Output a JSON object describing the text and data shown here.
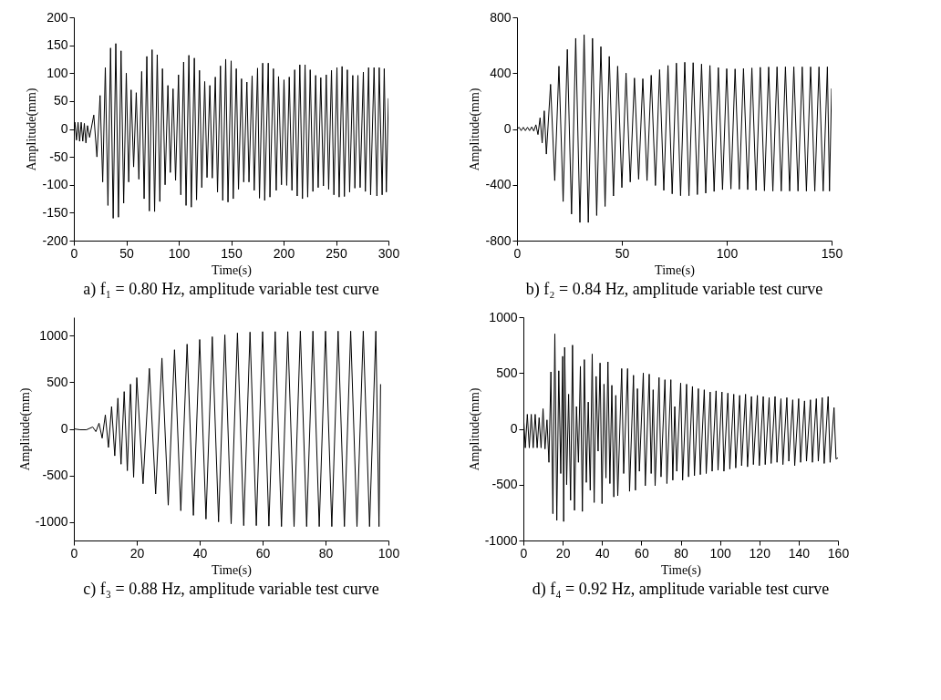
{
  "chart_data": [
    {
      "type": "line",
      "title": "a) f₁ = 0.80 Hz, amplitude variable test curve",
      "xlabel": "Time(s)",
      "ylabel": "Amplitude(mm)",
      "xlim": [
        0,
        300
      ],
      "xticks": [
        0,
        50,
        100,
        150,
        200,
        250,
        300
      ],
      "ylim": [
        -200,
        200
      ],
      "yticks": [
        -200,
        -150,
        -100,
        -50,
        0,
        50,
        100,
        150,
        200
      ],
      "series": [
        {
          "color": "#000000",
          "x": [
            0,
            1,
            2.5,
            4,
            5.5,
            7,
            8.5,
            10,
            11.5,
            13,
            15,
            19,
            22,
            25,
            27.5,
            30,
            32.5,
            35,
            37.5,
            40,
            42.5,
            45,
            47.5,
            50,
            52.3,
            54.6,
            57,
            59.5,
            62,
            64.7,
            67,
            69.6,
            72,
            74.6,
            77,
            79.5,
            82,
            84.5,
            87,
            89.7,
            92,
            94.6,
            97,
            99.8,
            102,
            104.7,
            107,
            109.7,
            112,
            114.9,
            117,
            119.8,
            122,
            124.8,
            127,
            129.7,
            132,
            134.9,
            137,
            139.8,
            142,
            144.8,
            147,
            150,
            152,
            154.9,
            157,
            159.9,
            162,
            165,
            167,
            170,
            172,
            175.2,
            177,
            180.1,
            182,
            185.4,
            187,
            190.3,
            193,
            195.2,
            198,
            200.4,
            203,
            205.4,
            208,
            210.6,
            213,
            215.5,
            218,
            220.5,
            223,
            225.4,
            228,
            230.6,
            233,
            235.5,
            238,
            240.7,
            243,
            245.7,
            248,
            250.9,
            253,
            255.8,
            258,
            260.8,
            263,
            266,
            268,
            270.9,
            273,
            276.1,
            278,
            281.1,
            283,
            286.3,
            289,
            291.2,
            294,
            296,
            298,
            300
          ],
          "values": [
            0,
            12,
            -20,
            12,
            -22,
            12,
            -22,
            10,
            -25,
            6,
            -15,
            25,
            -50,
            60,
            -95,
            110,
            -137,
            145,
            -160,
            153,
            -158,
            140,
            -133,
            100,
            -95,
            70,
            -68,
            65,
            -90,
            103,
            -125,
            130,
            -147,
            142,
            -148,
            133,
            -130,
            108,
            -100,
            78,
            -78,
            72,
            -92,
            97,
            -118,
            120,
            -137,
            132,
            -140,
            127,
            -127,
            105,
            -105,
            85,
            -87,
            78,
            -88,
            93,
            -113,
            113,
            -128,
            125,
            -131,
            122,
            -125,
            108,
            -108,
            90,
            -95,
            84,
            -95,
            95,
            -110,
            109,
            -124,
            118,
            -128,
            118,
            -122,
            108,
            -110,
            94,
            -100,
            88,
            -101,
            93,
            -110,
            106,
            -120,
            115,
            -125,
            115,
            -122,
            106,
            -112,
            96,
            -105,
            92,
            -102,
            97,
            -108,
            105,
            -118,
            110,
            -122,
            112,
            -121,
            106,
            -113,
            96,
            -106,
            96,
            -105,
            102,
            -112,
            110,
            -118,
            110,
            -120,
            110,
            -118,
            108,
            -113,
            55
          ]
        }
      ]
    },
    {
      "type": "line",
      "title": "b) f₂ = 0.84 Hz, amplitude variable test curve",
      "xlabel": "Time(s)",
      "ylabel": "Amplitude(mm)",
      "xlim": [
        0,
        150
      ],
      "xticks": [
        0,
        50,
        100,
        150
      ],
      "ylim": [
        -800,
        800
      ],
      "yticks": [
        -800,
        -400,
        0,
        400,
        800
      ],
      "series": [
        {
          "color": "#000000",
          "x": [
            0,
            1,
            2,
            3,
            4,
            5,
            6,
            7,
            8,
            9,
            10,
            11,
            12,
            13,
            14,
            16,
            18,
            20,
            22,
            24,
            26,
            28,
            30,
            32,
            34,
            36,
            38,
            40,
            42,
            44,
            46,
            48,
            50,
            52,
            54,
            56,
            58,
            60,
            62,
            64,
            66,
            68,
            70,
            72,
            74,
            76,
            78,
            80,
            82,
            84,
            86,
            88,
            90,
            92,
            94,
            96,
            98,
            100,
            102,
            104,
            106,
            108,
            110,
            112,
            114,
            116,
            118,
            120,
            122,
            124,
            126,
            128,
            130,
            132,
            134,
            136,
            138,
            140,
            142,
            144,
            146,
            148,
            149,
            150
          ],
          "values": [
            0,
            12,
            -12,
            12,
            -12,
            12,
            -12,
            15,
            -15,
            30,
            -40,
            80,
            -100,
            130,
            -180,
            320,
            -370,
            450,
            -520,
            570,
            -610,
            650,
            -670,
            675,
            -670,
            650,
            -620,
            590,
            -555,
            520,
            -480,
            450,
            -420,
            400,
            -380,
            365,
            -360,
            360,
            -370,
            385,
            -405,
            425,
            -440,
            455,
            -465,
            472,
            -478,
            478,
            -478,
            475,
            -470,
            465,
            -460,
            455,
            -448,
            440,
            -435,
            432,
            -430,
            430,
            -432,
            433,
            -435,
            437,
            -440,
            442,
            -443,
            444,
            -445,
            445,
            -445,
            445,
            -445,
            445,
            -445,
            445,
            -445,
            445,
            -445,
            445,
            -445,
            445,
            -445,
            290
          ]
        }
      ]
    },
    {
      "type": "line",
      "title": "c) f₃ = 0.88 Hz, amplitude variable test curve",
      "xlabel": "Time(s)",
      "ylabel": "Amplitude(mm)",
      "xlim": [
        0,
        100
      ],
      "xticks": [
        0,
        20,
        40,
        60,
        80,
        100
      ],
      "ylim": [
        -1200,
        1200
      ],
      "yticks": [
        -1000,
        -500,
        0,
        500,
        1000
      ],
      "series": [
        {
          "color": "#000000",
          "x": [
            0,
            2,
            4,
            6,
            7,
            8,
            9,
            10,
            11,
            12,
            13,
            14,
            15,
            16,
            17,
            18,
            19,
            20,
            22,
            24,
            26,
            28,
            30,
            32,
            34,
            36,
            38,
            40,
            42,
            44,
            46,
            48,
            50,
            52,
            54,
            56,
            58,
            60,
            62,
            64,
            66,
            68,
            70,
            72,
            74,
            76,
            78,
            80,
            82,
            84,
            86,
            88,
            90,
            92,
            94,
            96,
            97,
            97.5
          ],
          "values": [
            0,
            -10,
            -10,
            20,
            -30,
            60,
            -100,
            150,
            -200,
            240,
            -290,
            330,
            -380,
            400,
            -450,
            480,
            -520,
            550,
            -590,
            650,
            -700,
            760,
            -820,
            850,
            -880,
            910,
            -930,
            960,
            -970,
            990,
            -1000,
            1010,
            -1020,
            1030,
            -1040,
            1040,
            -1040,
            1045,
            -1045,
            1045,
            -1050,
            1045,
            -1050,
            1050,
            -1050,
            1050,
            -1050,
            1050,
            -1050,
            1050,
            -1050,
            1050,
            -1050,
            1050,
            -1050,
            1050,
            -1050,
            480
          ]
        }
      ]
    },
    {
      "type": "line",
      "title": "d) f₄ = 0.92 Hz, amplitude variable test curve",
      "xlabel": "Time(s)",
      "ylabel": "Amplitude(mm)",
      "xlim": [
        0,
        160
      ],
      "xticks": [
        0,
        20,
        40,
        60,
        80,
        100,
        120,
        140,
        160
      ],
      "ylim": [
        -1000,
        1000
      ],
      "yticks": [
        -1000,
        -500,
        0,
        500,
        1000
      ],
      "series": [
        {
          "color": "#000000",
          "x": [
            0,
            1,
            2,
            3,
            4,
            5,
            6,
            7,
            8,
            9,
            10,
            11,
            12,
            13,
            14,
            15,
            16,
            17,
            18,
            19,
            20,
            20.5,
            21,
            22,
            23,
            24,
            25,
            26,
            27,
            28,
            29,
            30,
            31,
            32,
            33,
            34,
            35,
            36,
            37,
            38,
            39,
            40,
            41,
            42,
            43,
            44,
            45,
            46,
            47,
            48,
            50,
            51,
            53,
            54,
            56,
            57,
            58,
            59,
            61,
            62,
            64,
            65,
            66,
            67,
            69,
            70,
            72,
            73,
            75,
            76,
            77,
            78,
            80,
            81,
            83,
            84,
            86,
            87,
            89,
            90,
            92,
            93,
            95,
            96,
            98,
            99,
            101,
            102,
            104,
            105,
            107,
            108,
            110,
            111,
            113,
            114,
            116,
            117,
            119,
            120,
            122,
            123,
            125,
            126,
            128,
            129,
            131,
            132,
            134,
            135,
            137,
            138,
            140,
            141,
            143,
            144,
            146,
            147,
            149,
            150,
            152,
            153,
            155,
            156,
            158,
            159,
            160
          ],
          "values": [
            130,
            -170,
            130,
            -170,
            130,
            -170,
            130,
            -170,
            100,
            -170,
            180,
            -180,
            80,
            -300,
            510,
            -760,
            850,
            -820,
            520,
            -400,
            650,
            -830,
            730,
            -500,
            310,
            -640,
            750,
            -730,
            200,
            -300,
            560,
            -740,
            620,
            -480,
            240,
            -550,
            670,
            -660,
            470,
            -200,
            590,
            -670,
            400,
            -440,
            600,
            -490,
            390,
            -610,
            300,
            -600,
            540,
            -400,
            540,
            -560,
            480,
            -550,
            360,
            -380,
            500,
            -510,
            490,
            -400,
            350,
            -510,
            460,
            -430,
            440,
            -490,
            440,
            -460,
            200,
            -380,
            410,
            -460,
            400,
            -430,
            380,
            -420,
            360,
            -410,
            350,
            -400,
            330,
            -380,
            340,
            -370,
            330,
            -380,
            320,
            -360,
            310,
            -350,
            300,
            -330,
            310,
            -340,
            290,
            -320,
            300,
            -330,
            290,
            -320,
            280,
            -310,
            290,
            -300,
            270,
            -320,
            280,
            -290,
            260,
            -330,
            270,
            -300,
            250,
            -290,
            260,
            -300,
            270,
            -290,
            280,
            -310,
            290,
            -300,
            190,
            -270,
            -260
          ]
        }
      ]
    }
  ]
}
